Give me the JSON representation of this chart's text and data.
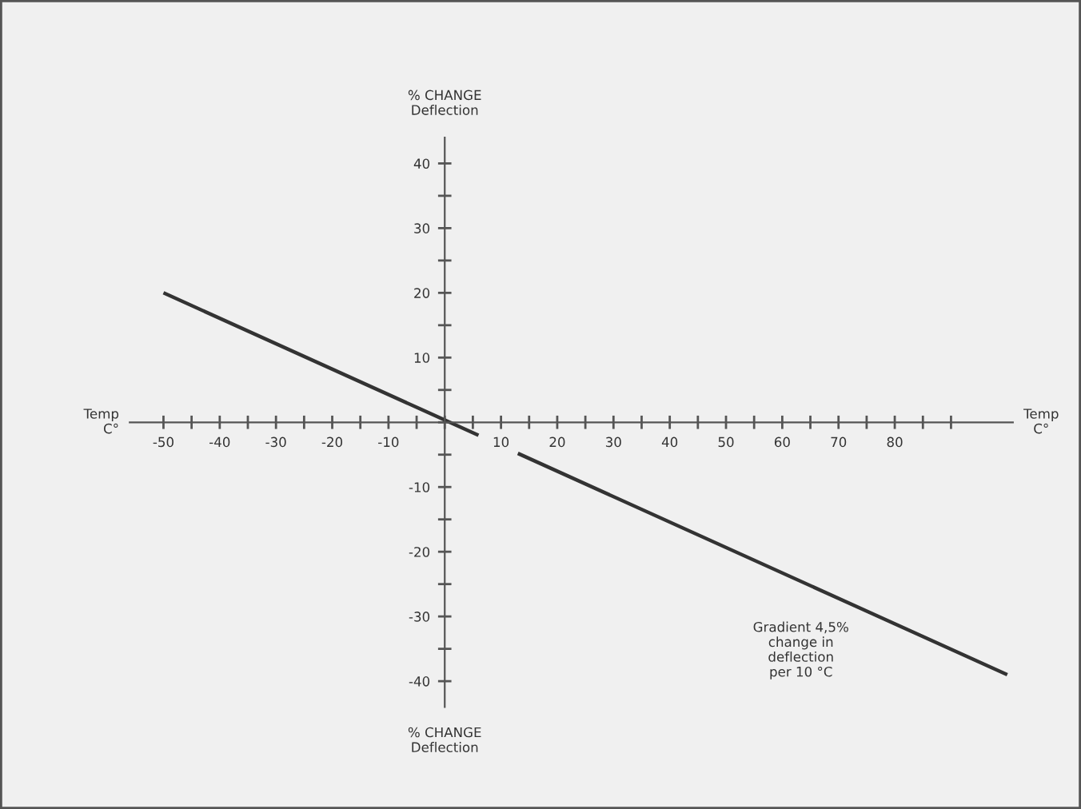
{
  "chart_data": {
    "type": "line",
    "xlabel": "Temp\nC°",
    "ylabel": "% CHANGE\nDeflection",
    "x": [
      -50,
      6,
      9,
      13,
      100
    ],
    "series": [
      {
        "color": "#333333",
        "values": [
          20,
          -2,
          null,
          -4.8,
          -39
        ]
      }
    ],
    "xlim": [
      -56,
      101
    ],
    "ylim": [
      -44,
      44
    ],
    "xticks": [
      -50,
      {
        "value": -45,
        "label": null
      },
      -40,
      {
        "value": -35,
        "label": null
      },
      -30,
      {
        "value": -25,
        "label": null
      },
      -20,
      {
        "value": -15,
        "label": null
      },
      -10,
      {
        "value": -5,
        "label": null
      },
      {
        "value": 0,
        "label": null
      },
      {
        "value": 5,
        "label": null
      },
      10,
      {
        "value": 15,
        "label": null
      },
      20,
      {
        "value": 25,
        "label": null
      },
      30,
      {
        "value": 35,
        "label": null
      },
      40,
      {
        "value": 45,
        "label": null
      },
      50,
      {
        "value": 55,
        "label": null
      },
      60,
      {
        "value": 65,
        "label": null
      },
      70,
      {
        "value": 75,
        "label": null
      },
      80,
      {
        "value": 85,
        "label": null
      },
      {
        "value": 90,
        "label": null
      }
    ],
    "yticks": [
      -40,
      {
        "value": -35,
        "label": null
      },
      -30,
      {
        "value": -25,
        "label": null
      },
      -20,
      {
        "value": -15,
        "label": null
      },
      -10,
      {
        "value": -5,
        "label": null
      },
      {
        "value": 0,
        "label": null
      },
      {
        "value": 5,
        "label": null
      },
      10,
      {
        "value": 15,
        "label": null
      },
      20,
      {
        "value": 25,
        "label": null
      },
      30,
      {
        "value": 35,
        "label": null
      },
      40
    ],
    "annotations": [
      "Temp\nC°",
      "% CHANGE\nDeflection",
      "Gradient 4,5%\nchange in\ndeflection\nper 10 °C"
    ],
    "grid": false,
    "legend": false,
    "marker": "none",
    "line_style": "solid"
  }
}
